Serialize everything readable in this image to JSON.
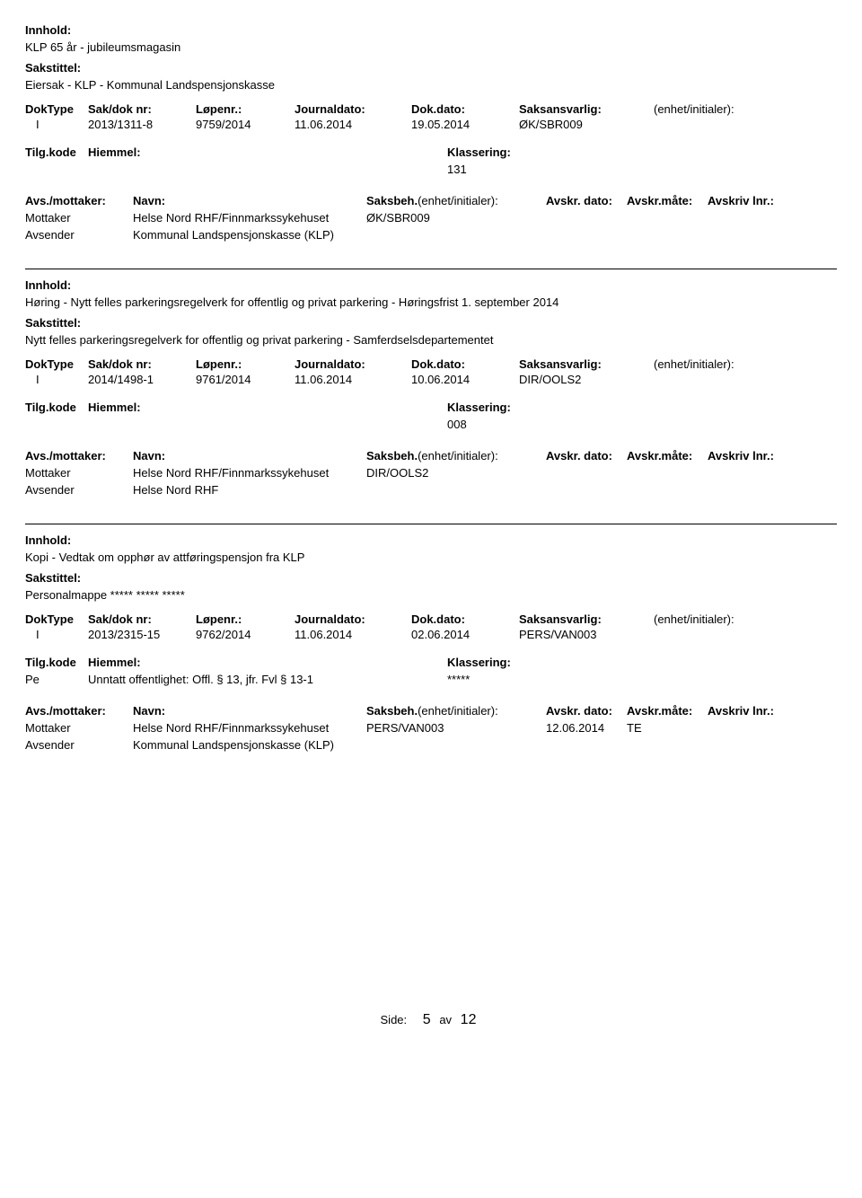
{
  "labels": {
    "innhold": "Innhold:",
    "sakstittel": "Sakstittel:",
    "doktype": "DokType",
    "sakdoknr": "Sak/dok nr:",
    "lopenr": "Løpenr.:",
    "journaldato": "Journaldato:",
    "dokdato": "Dok.dato:",
    "saksansvarlig": "Saksansvarlig:",
    "enhet": "(enhet/initialer):",
    "tilgkode": "Tilg.kode",
    "hjemmel": "Hiemmel:",
    "klassering": "Klassering:",
    "avsmottaker": "Avs./mottaker:",
    "navn": "Navn:",
    "saksbeh": "Saksbeh.",
    "saksbeh_enhet": "(enhet/initialer):",
    "avskrdato": "Avskr. dato:",
    "avskrmote": "Avskr.måte:",
    "avskrivlnr": "Avskriv lnr.:",
    "mottaker": "Mottaker",
    "avsender": "Avsender"
  },
  "entries": [
    {
      "innhold": "KLP 65 år - jubileumsmagasin",
      "sakstittel": "Eiersak - KLP - Kommunal Landspensjonskasse",
      "doktype": "I",
      "sakdoknr": "2013/1311-8",
      "lopenr": "9759/2014",
      "journaldato": "11.06.2014",
      "dokdato": "19.05.2014",
      "saksansvarlig": "ØK/SBR009",
      "tilgkode": "",
      "hjemmel": "",
      "klassering": "131",
      "parties": [
        {
          "role": "Mottaker",
          "name": "Helse Nord RHF/Finnmarkssykehuset",
          "saksbeh": "ØK/SBR009",
          "avskrdato": "",
          "avskrmote": "",
          "avskrivlnr": ""
        },
        {
          "role": "Avsender",
          "name": "Kommunal Landspensjonskasse (KLP)",
          "saksbeh": "",
          "avskrdato": "",
          "avskrmote": "",
          "avskrivlnr": ""
        }
      ]
    },
    {
      "innhold": "Høring - Nytt felles parkeringsregelverk for offentlig og privat parkering - Høringsfrist 1. september 2014",
      "sakstittel": "Nytt felles parkeringsregelverk for offentlig og privat parkering - Samferdselsdepartementet",
      "doktype": "I",
      "sakdoknr": "2014/1498-1",
      "lopenr": "9761/2014",
      "journaldato": "11.06.2014",
      "dokdato": "10.06.2014",
      "saksansvarlig": "DIR/OOLS2",
      "tilgkode": "",
      "hjemmel": "",
      "klassering": "008",
      "parties": [
        {
          "role": "Mottaker",
          "name": "Helse Nord RHF/Finnmarkssykehuset",
          "saksbeh": "DIR/OOLS2",
          "avskrdato": "",
          "avskrmote": "",
          "avskrivlnr": ""
        },
        {
          "role": "Avsender",
          "name": "Helse Nord RHF",
          "saksbeh": "",
          "avskrdato": "",
          "avskrmote": "",
          "avskrivlnr": ""
        }
      ]
    },
    {
      "innhold": "Kopi - Vedtak om opphør av attføringspensjon fra KLP",
      "sakstittel": "Personalmappe ***** ***** *****",
      "doktype": "I",
      "sakdoknr": "2013/2315-15",
      "lopenr": "9762/2014",
      "journaldato": "11.06.2014",
      "dokdato": "02.06.2014",
      "saksansvarlig": "PERS/VAN003",
      "tilgkode": "Pe",
      "hjemmel": "Unntatt offentlighet: Offl. § 13, jfr. Fvl § 13-1",
      "klassering": "*****",
      "parties": [
        {
          "role": "Mottaker",
          "name": "Helse Nord RHF/Finnmarkssykehuset",
          "saksbeh": "PERS/VAN003",
          "avskrdato": "12.06.2014",
          "avskrmote": "TE",
          "avskrivlnr": ""
        },
        {
          "role": "Avsender",
          "name": "Kommunal Landspensjonskasse (KLP)",
          "saksbeh": "",
          "avskrdato": "",
          "avskrmote": "",
          "avskrivlnr": ""
        }
      ]
    }
  ],
  "footer": {
    "label": "Side:",
    "page": "5",
    "sep": "av",
    "total": "12"
  }
}
